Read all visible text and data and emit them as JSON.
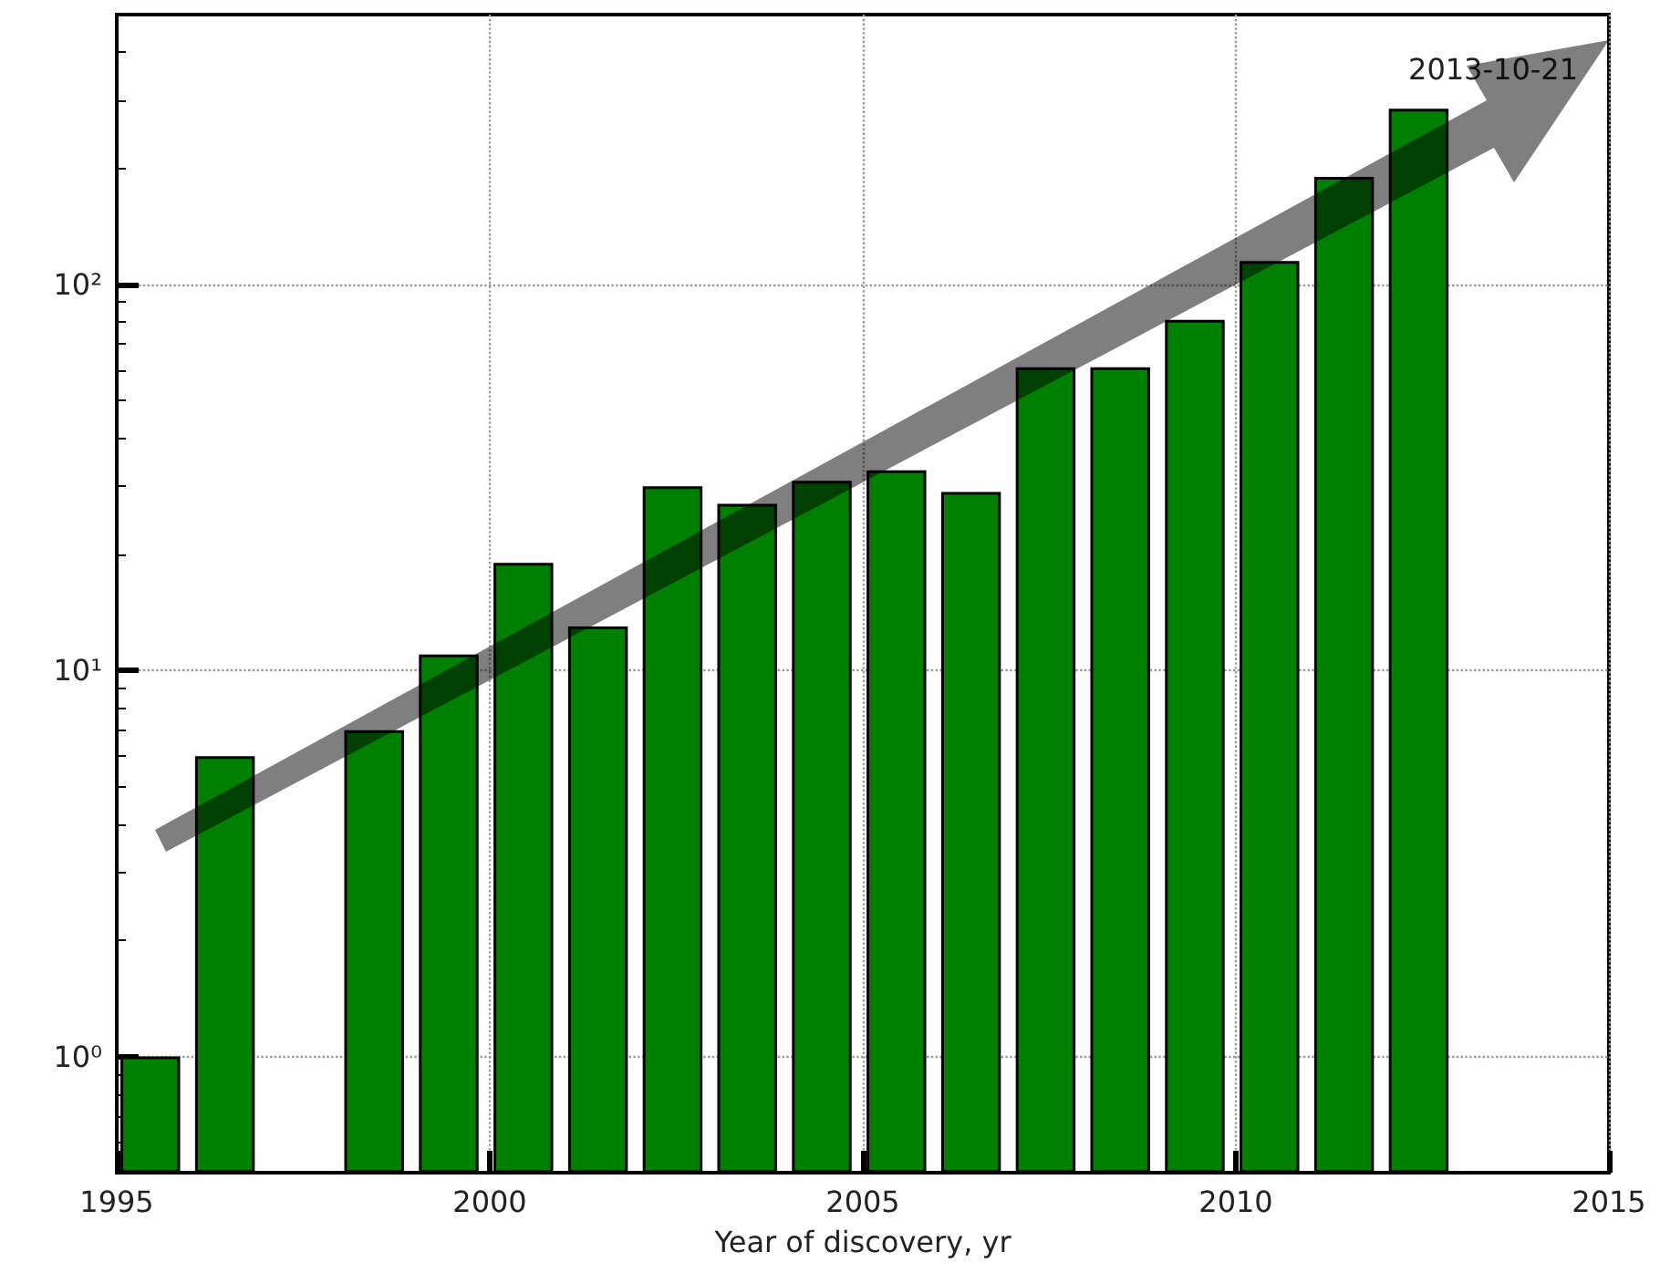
{
  "chart_data": {
    "type": "bar",
    "xlabel": "Year of discovery, yr",
    "x": [
      1995.45,
      1996.45,
      1997.45,
      1998.45,
      1999.45,
      2000.45,
      2001.45,
      2002.45,
      2003.45,
      2004.45,
      2005.45,
      2006.45,
      2007.45,
      2008.45,
      2009.45,
      2010.45,
      2011.45,
      2012.45
    ],
    "values": [
      1,
      6,
      null,
      7,
      11,
      19,
      13,
      30,
      27,
      31,
      33,
      29,
      61,
      61,
      81,
      115,
      190,
      285
    ],
    "color": "#008000",
    "xlim": [
      1995,
      2015
    ],
    "xticks": [
      1995,
      2000,
      2005,
      2010,
      2015
    ],
    "ylim": [
      0.5,
      500
    ],
    "yticks": [
      {
        "value": 1,
        "label": "10⁰"
      },
      {
        "value": 10,
        "label": "10¹"
      },
      {
        "value": 100,
        "label": "10²"
      }
    ],
    "log": "y",
    "grid": true,
    "annotations": [
      "2013-10-21"
    ]
  }
}
